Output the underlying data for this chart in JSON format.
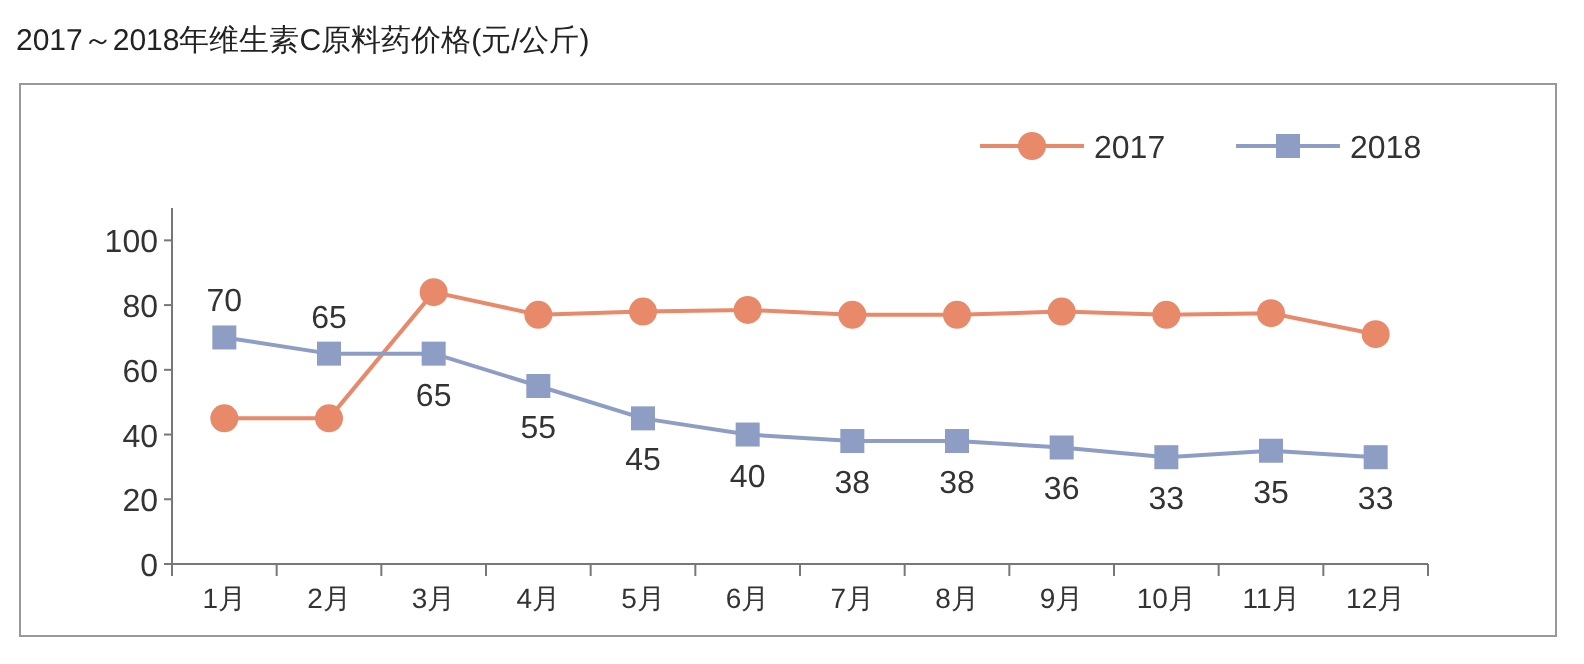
{
  "chart_data": {
    "type": "line",
    "title": "2017～2018年维生素C原料药价格(元/公斤)",
    "categories": [
      "1月",
      "2月",
      "3月",
      "4月",
      "5月",
      "6月",
      "7月",
      "8月",
      "9月",
      "10月",
      "11月",
      "12月"
    ],
    "series": [
      {
        "name": "2017",
        "color": "#e8896a",
        "marker": "circle",
        "values": [
          45,
          45,
          84,
          77,
          78,
          78.5,
          77,
          77,
          78,
          77,
          77.5,
          71
        ]
      },
      {
        "name": "2018",
        "color": "#8e9dc4",
        "marker": "square",
        "data_labels": true,
        "values": [
          70,
          65,
          65,
          55,
          45,
          40,
          38,
          38,
          36,
          33,
          35,
          33
        ]
      }
    ],
    "ylim": [
      0,
      110
    ],
    "yticks": [
      0,
      20,
      40,
      60,
      80,
      100
    ],
    "grid": false,
    "legend": "top right",
    "line_style": "solid"
  }
}
